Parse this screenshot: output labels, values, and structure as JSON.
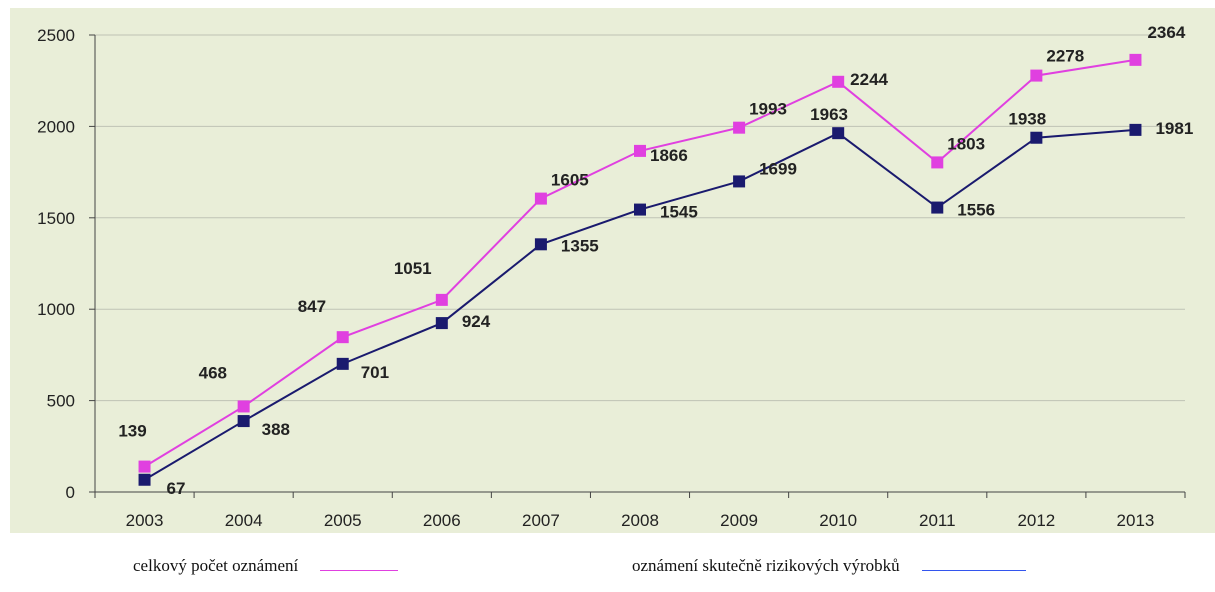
{
  "colors": {
    "plot_background": "#e9eed8",
    "gridline": "#bfc3b5",
    "axis": "#444444",
    "series_total": "#e040e0",
    "series_risky": "#1a1a6e",
    "legend_total_line": "#e040e0",
    "legend_risky_line": "#3355ee"
  },
  "chart_data": {
    "type": "line",
    "x": [
      "2003",
      "2004",
      "2005",
      "2006",
      "2007",
      "2008",
      "2009",
      "2010",
      "2011",
      "2012",
      "2013"
    ],
    "ylim": [
      0,
      2500
    ],
    "yticks": [
      "0",
      "500",
      "1000",
      "1500",
      "2000",
      "2500"
    ],
    "grid": true,
    "legend_position": "bottom",
    "series": [
      {
        "name": "celkový počet oznámení",
        "color": "#e040e0",
        "values": [
          139,
          468,
          847,
          1051,
          1605,
          1866,
          1993,
          2244,
          1803,
          2278,
          2364
        ],
        "labels": [
          "139",
          "468",
          "847",
          "1051",
          "1605",
          "1866",
          "1993",
          "2244",
          "1803",
          "2278",
          "2364"
        ]
      },
      {
        "name": "oznámení skutečně rizikových výrobků",
        "color": "#1a1a6e",
        "values": [
          67,
          388,
          701,
          924,
          1355,
          1545,
          1699,
          1963,
          1556,
          1938,
          1981
        ],
        "labels": [
          "67",
          "388",
          "701",
          "924",
          "1355",
          "1545",
          "1699",
          "1963",
          "1556",
          "1938",
          "1981"
        ]
      }
    ]
  },
  "legend": {
    "total_label": "celkový počet oznámení",
    "risky_label": "oznámení skutečně rizikových výrobků"
  }
}
